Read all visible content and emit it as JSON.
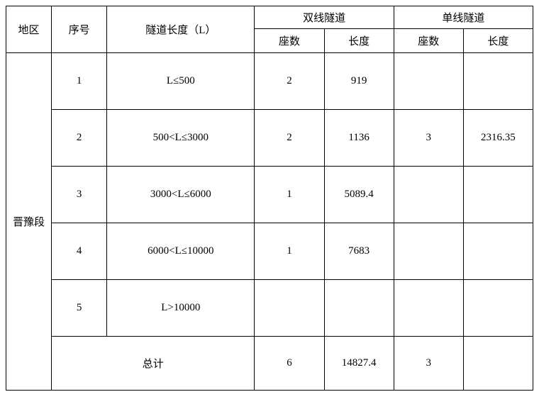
{
  "headers": {
    "region": "地区",
    "seq": "序号",
    "tunnel_length": "隧道长度（L）",
    "double_track": "双线隧道",
    "single_track": "单线隧道",
    "count": "座数",
    "length": "长度"
  },
  "region_name": "晋豫段",
  "rows": [
    {
      "seq": "1",
      "length_class": "L≤500",
      "dbl_count": "2",
      "dbl_len": "919",
      "sgl_count": "",
      "sgl_len": ""
    },
    {
      "seq": "2",
      "length_class": "500<L≤3000",
      "dbl_count": "2",
      "dbl_len": "1136",
      "sgl_count": "3",
      "sgl_len": "2316.35"
    },
    {
      "seq": "3",
      "length_class": "3000<L≤6000",
      "dbl_count": "1",
      "dbl_len": "5089.4",
      "sgl_count": "",
      "sgl_len": ""
    },
    {
      "seq": "4",
      "length_class": "6000<L≤10000",
      "dbl_count": "1",
      "dbl_len": "7683",
      "sgl_count": "",
      "sgl_len": ""
    },
    {
      "seq": "5",
      "length_class": "L>10000",
      "dbl_count": "",
      "dbl_len": "",
      "sgl_count": "",
      "sgl_len": ""
    }
  ],
  "total": {
    "label": "总计",
    "dbl_count": "6",
    "dbl_len": "14827.4",
    "sgl_count": "3",
    "sgl_len": ""
  }
}
